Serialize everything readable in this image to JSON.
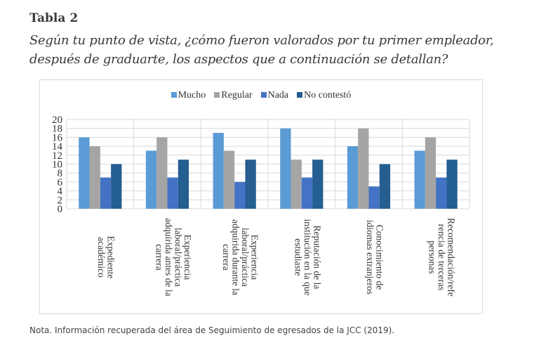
{
  "title": "Tabla 2",
  "subtitle": "Según tu punto de vista, ¿cómo fueron valorados por tu primer empleador, después de graduarte, los aspectos que a continuación se detallan?",
  "note": "Nota. Información recuperada del área de Seguimiento de egresados de la JCC (2019).",
  "chart_data": {
    "type": "bar",
    "categories": [
      "Expediente\nacadémico",
      "Experiencia\nlaboral/práctica\nadquirida antes de la\ncarrera",
      "Experiencia\nlaboral/práctica\nadquirida durante la\ncarrera",
      "Reputación de la\ninstitución en la que\nestudiaste",
      "Conocimiento de\nidiomas extranjeros",
      "Recomendación/refe\nrencia de terceras\npersonas"
    ],
    "series": [
      {
        "name": "Mucho",
        "color": "#5b9bd5",
        "values": [
          16,
          13,
          17,
          18,
          14,
          13
        ]
      },
      {
        "name": "Regular",
        "color": "#a5a5a5",
        "values": [
          14,
          16,
          13,
          11,
          18,
          16
        ]
      },
      {
        "name": "Nada",
        "color": "#4472c4",
        "values": [
          7,
          7,
          6,
          7,
          5,
          7
        ]
      },
      {
        "name": "No contestó",
        "color": "#255e91",
        "values": [
          10,
          11,
          11,
          11,
          10,
          11
        ]
      }
    ],
    "ylim": [
      0,
      20
    ],
    "yticks": [
      0,
      2,
      4,
      6,
      8,
      10,
      12,
      14,
      16,
      18,
      20
    ],
    "grid": true,
    "legend": "top"
  }
}
